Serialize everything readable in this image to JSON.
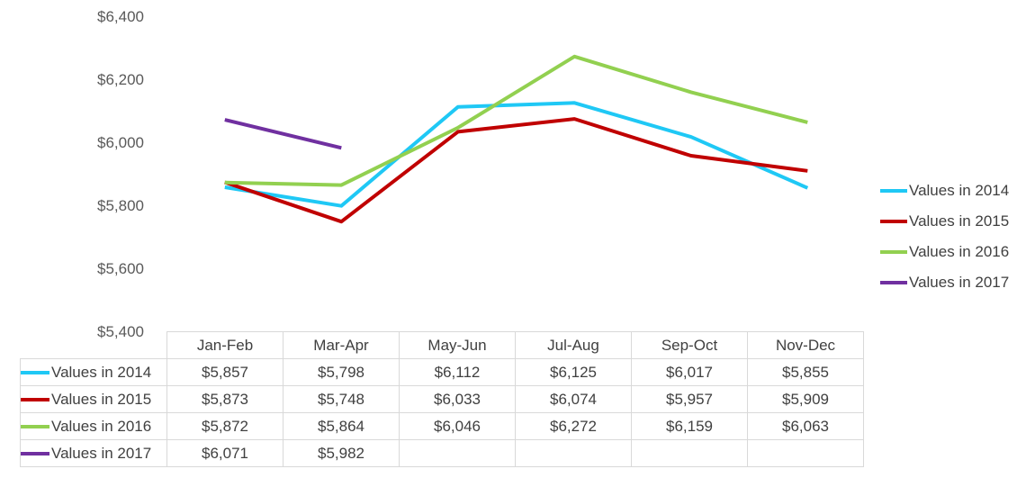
{
  "chart_data": {
    "type": "line",
    "categories": [
      "Jan-Feb",
      "Mar-Apr",
      "May-Jun",
      "Jul-Aug",
      "Sep-Oct",
      "Nov-Dec"
    ],
    "series": [
      {
        "name": "Values in 2014",
        "color": "#1fc8f5",
        "values": [
          5857,
          5798,
          6112,
          6125,
          6017,
          5855
        ],
        "labels": [
          "$5,857",
          "$5,798",
          "$6,112",
          "$6,125",
          "$6,017",
          "$5,855"
        ]
      },
      {
        "name": "Values in 2015",
        "color": "#c00000",
        "values": [
          5873,
          5748,
          6033,
          6074,
          5957,
          5909
        ],
        "labels": [
          "$5,873",
          "$5,748",
          "$6,033",
          "$6,074",
          "$5,957",
          "$5,909"
        ]
      },
      {
        "name": "Values in 2016",
        "color": "#92d050",
        "values": [
          5872,
          5864,
          6046,
          6272,
          6159,
          6063
        ],
        "labels": [
          "$5,872",
          "$5,864",
          "$6,046",
          "$6,272",
          "$6,159",
          "$6,063"
        ]
      },
      {
        "name": "Values in 2017",
        "color": "#7030a0",
        "values": [
          6071,
          5982,
          null,
          null,
          null,
          null
        ],
        "labels": [
          "$6,071",
          "$5,982",
          "",
          "",
          "",
          ""
        ]
      }
    ],
    "title": "",
    "xlabel": "",
    "ylabel": "",
    "ylim": [
      5400,
      6400
    ],
    "yticks": [
      6400,
      6200,
      6000,
      5800,
      5600,
      5400
    ],
    "ytick_labels": [
      "$6,400",
      "$6,200",
      "$6,000",
      "$5,800",
      "$5,600",
      "$5,400"
    ],
    "grid": false,
    "legend_position": "right",
    "data_table": true
  }
}
